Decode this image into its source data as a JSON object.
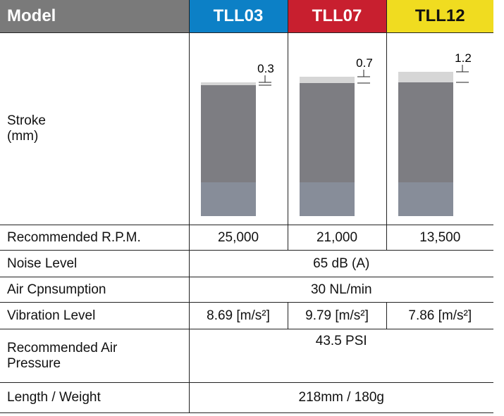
{
  "header": {
    "label": "Model",
    "models": [
      "TLL03",
      "TLL07",
      "TLL12"
    ]
  },
  "stroke": {
    "label": [
      "Stroke",
      "(mm)"
    ],
    "values": [
      "0.3",
      "0.7",
      "1.2"
    ]
  },
  "table": {
    "rows": [
      {
        "label": [
          "Recommended R.P.M."
        ],
        "cells": [
          "25,000",
          "21,000",
          "13,500"
        ]
      },
      {
        "label": [
          "Noise Level"
        ],
        "cells": [
          "65 dB (A)"
        ]
      },
      {
        "label": [
          "Air Cpnsumption"
        ],
        "cells": [
          "30 NL/min"
        ]
      },
      {
        "label": [
          "Vibration Level"
        ],
        "cells": [
          "8.69 [m/s²]",
          "9.79 [m/s²]",
          "7.86 [m/s²]"
        ]
      },
      {
        "label": [
          "Recommended Air",
          "Pressure"
        ],
        "cells": [
          "43.5 PSI"
        ]
      },
      {
        "label": [
          "Length / Weight"
        ],
        "cells": [
          "218mm / 180g"
        ]
      }
    ]
  }
}
